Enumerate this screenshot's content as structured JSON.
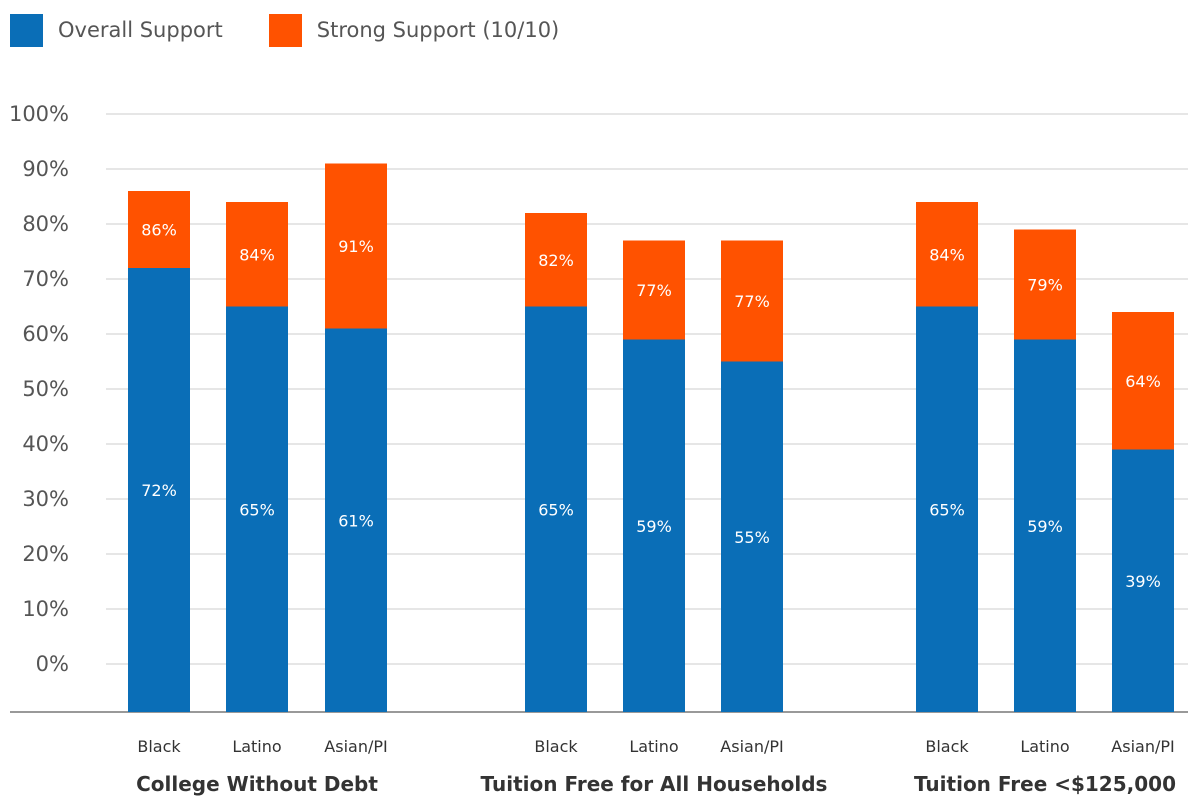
{
  "chart_data": {
    "type": "bar",
    "stacked": true,
    "title": "",
    "xlabel": "",
    "ylabel": "",
    "ylim": [
      0,
      100
    ],
    "yticks": [
      "0%",
      "10%",
      "20%",
      "30%",
      "40%",
      "50%",
      "60%",
      "70%",
      "80%",
      "90%",
      "100%"
    ],
    "grid": true,
    "legend_position": "top-left",
    "groups": [
      {
        "label": "College Without Debt",
        "categories": [
          "Black",
          "Latino",
          "Asian/PI"
        ]
      },
      {
        "label": "Tuition Free for All Households",
        "categories": [
          "Black",
          "Latino",
          "Asian/PI"
        ]
      },
      {
        "label": "Tuition Free <$125,000",
        "categories": [
          "Black",
          "Latino",
          "Asian/PI"
        ]
      }
    ],
    "series": [
      {
        "name": "Overall Support",
        "color": "#0A6EB7",
        "values": [
          72,
          65,
          61,
          65,
          59,
          55,
          65,
          59,
          39
        ],
        "labels": [
          "72%",
          "65%",
          "61%",
          "65%",
          "59%",
          "55%",
          "65%",
          "59%",
          "39%"
        ]
      },
      {
        "name": "Strong Support (10/10)",
        "color": "#FF5200",
        "totals": [
          86,
          84,
          91,
          82,
          77,
          77,
          84,
          79,
          64
        ],
        "labels": [
          "86%",
          "84%",
          "91%",
          "82%",
          "77%",
          "77%",
          "84%",
          "79%",
          "64%"
        ]
      }
    ]
  }
}
